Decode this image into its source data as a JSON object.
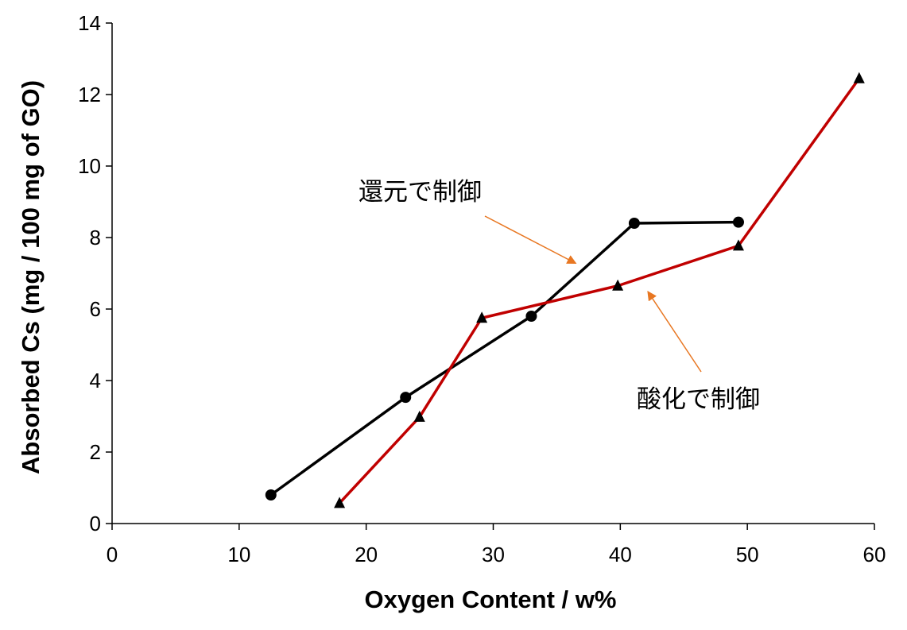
{
  "chart_data": {
    "type": "line",
    "xlabel": "Oxygen Content / w%",
    "ylabel": "Absorbed Cs (mg / 100 mg of GO)",
    "xlim": [
      0,
      60
    ],
    "ylim": [
      0,
      14
    ],
    "xticks": [
      "0",
      "10",
      "20",
      "30",
      "40",
      "50",
      "60"
    ],
    "yticks": [
      "0",
      "2",
      "4",
      "6",
      "8",
      "10",
      "12",
      "14"
    ],
    "grid": false,
    "series": [
      {
        "marker": "circle",
        "color": "#000000",
        "points": [
          [
            12.5,
            0.8
          ],
          [
            23.1,
            3.53
          ],
          [
            33.0,
            5.8
          ],
          [
            41.1,
            8.4
          ],
          [
            49.3,
            8.43
          ]
        ]
      },
      {
        "marker": "triangle",
        "color": "#c00000",
        "points": [
          [
            17.9,
            0.57
          ],
          [
            24.2,
            2.98
          ],
          [
            29.1,
            5.75
          ],
          [
            39.8,
            6.65
          ],
          [
            49.3,
            7.77
          ],
          [
            58.8,
            12.45
          ]
        ]
      }
    ],
    "annotations": [
      {
        "text": "還元で制御",
        "arrow_color": "#e87722",
        "target": [
          36.5,
          7.5
        ]
      },
      {
        "text": "酸化で制御",
        "arrow_color": "#e87722",
        "target": [
          42.3,
          6.5
        ]
      }
    ]
  }
}
